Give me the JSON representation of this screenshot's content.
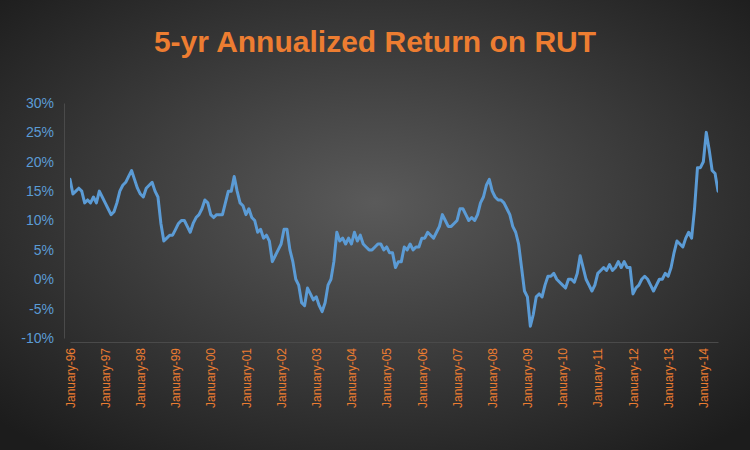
{
  "chart_data": {
    "type": "line",
    "title": "5-yr Annualized Return on RUT",
    "color": "#5b9bd5",
    "grid": false,
    "categories": [
      "January-96",
      null,
      null,
      null,
      null,
      null,
      null,
      null,
      null,
      null,
      null,
      null,
      "January-97",
      null,
      null,
      null,
      null,
      null,
      null,
      null,
      null,
      null,
      null,
      null,
      "January-98",
      null,
      null,
      null,
      null,
      null,
      null,
      null,
      null,
      null,
      null,
      null,
      "January-99",
      null,
      null,
      null,
      null,
      null,
      null,
      null,
      null,
      null,
      null,
      null,
      "January-00",
      null,
      null,
      null,
      null,
      null,
      null,
      null,
      null,
      null,
      null,
      null,
      "January-01",
      null,
      null,
      null,
      null,
      null,
      null,
      null,
      null,
      null,
      null,
      null,
      "January-02",
      null,
      null,
      null,
      null,
      null,
      null,
      null,
      null,
      null,
      null,
      null,
      "January-03",
      null,
      null,
      null,
      null,
      null,
      null,
      null,
      null,
      null,
      null,
      null,
      "January-04",
      null,
      null,
      null,
      null,
      null,
      null,
      null,
      null,
      null,
      null,
      null,
      "January-05",
      null,
      null,
      null,
      null,
      null,
      null,
      null,
      null,
      null,
      null,
      null,
      "January-06",
      null,
      null,
      null,
      null,
      null,
      null,
      null,
      null,
      null,
      null,
      null,
      "January-07",
      null,
      null,
      null,
      null,
      null,
      null,
      null,
      null,
      null,
      null,
      null,
      "January-08",
      null,
      null,
      null,
      null,
      null,
      null,
      null,
      null,
      null,
      null,
      null,
      "January-09",
      null,
      null,
      null,
      null,
      null,
      null,
      null,
      null,
      null,
      null,
      null,
      "January-10",
      null,
      null,
      null,
      null,
      null,
      null,
      null,
      null,
      null,
      null,
      null,
      "January-11",
      null,
      null,
      null,
      null,
      null,
      null,
      null,
      null,
      null,
      null,
      null,
      "January-12",
      null,
      null,
      null,
      null,
      null,
      null,
      null,
      null,
      null,
      null,
      null,
      "January-13",
      null,
      null,
      null,
      null,
      null,
      null,
      null,
      null,
      null,
      null,
      null,
      "January-14",
      null,
      null,
      null,
      null,
      null
    ],
    "values": [
      17,
      14.5,
      15,
      15.5,
      15,
      13,
      13.5,
      13,
      14,
      13,
      15,
      14,
      13,
      12,
      11,
      11.5,
      13,
      15,
      16,
      16.5,
      17.5,
      18.5,
      17,
      15.5,
      14.5,
      14,
      15.5,
      16,
      16.5,
      15,
      14,
      9.5,
      6.5,
      7,
      7.5,
      7.5,
      8.5,
      9.5,
      10,
      10,
      9,
      8,
      9.5,
      10.5,
      11,
      12,
      13.5,
      13,
      11,
      10.5,
      11,
      11,
      11,
      13,
      15,
      15,
      17.5,
      15,
      13,
      12.5,
      11,
      12,
      10.5,
      10,
      8,
      8.5,
      7,
      7.5,
      6.5,
      3,
      4,
      5,
      6,
      8.5,
      8.5,
      5,
      3,
      0,
      -1,
      -4,
      -4.5,
      -1.5,
      -2.5,
      -3.5,
      -3,
      -4.5,
      -5.5,
      -4,
      -1,
      0,
      3,
      8,
      6.5,
      7,
      6,
      7,
      6,
      8,
      6.5,
      7.5,
      6,
      5.5,
      5,
      5,
      5.5,
      6,
      6,
      5,
      5.5,
      4.5,
      4.5,
      2,
      3,
      3,
      5.5,
      5,
      6,
      5,
      5.5,
      5.5,
      7,
      7,
      8,
      7.5,
      7,
      8,
      9,
      11,
      10,
      9,
      9,
      9.5,
      10,
      12,
      12,
      11,
      10,
      10.5,
      10,
      11,
      13,
      14,
      16,
      17,
      15,
      14,
      13.5,
      13.5,
      13,
      12,
      11,
      9,
      8,
      6,
      2,
      -2,
      -3,
      -8,
      -6,
      -3,
      -2.5,
      -3,
      -1,
      0.5,
      0.5,
      1,
      0,
      -0.5,
      -1,
      -1.5,
      0,
      0,
      -0.5,
      1,
      4,
      2,
      0,
      -1,
      -2,
      -1,
      1,
      1.5,
      2,
      1.5,
      2.5,
      1.5,
      2,
      3,
      2,
      3,
      2,
      2,
      -2.5,
      -1.5,
      -1,
      0,
      0.5,
      0,
      -1,
      -2,
      -1,
      0,
      0,
      1,
      0.5,
      2,
      4.5,
      6.5,
      6,
      5.5,
      7,
      8,
      7,
      12,
      19,
      19,
      20,
      25,
      22,
      18.5,
      18,
      15
    ],
    "ylim": [
      -10,
      30
    ],
    "yticks": [
      {
        "value": -10,
        "label": "-10%"
      },
      {
        "value": -5,
        "label": "-5%"
      },
      {
        "value": 0,
        "label": "0%"
      },
      {
        "value": 5,
        "label": "5%"
      },
      {
        "value": 10,
        "label": "10%"
      },
      {
        "value": 15,
        "label": "15%"
      },
      {
        "value": 20,
        "label": "20%"
      },
      {
        "value": 25,
        "label": "25%"
      },
      {
        "value": 30,
        "label": "30%"
      }
    ]
  }
}
